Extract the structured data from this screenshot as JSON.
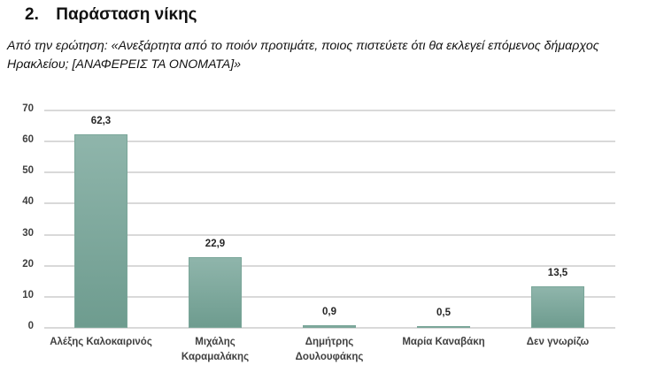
{
  "header": {
    "number": "2.",
    "title": "Παράσταση νίκης",
    "question_line1": "Από την ερώτηση: «Ανεξάρτητα από το ποιόν προτιμάτε, ποιος πιστεύετε ότι θα εκλεγεί επόμενος δήμαρχος",
    "question_line2": "Ηρακλείου; [ΑΝΑΦΕΡΕΙΣ ΤΑ ΟΝΟΜΑΤΑ]»"
  },
  "chart_data": {
    "type": "bar",
    "title": "Παράσταση νίκης",
    "subtitle": "Από την ερώτηση: «Ανεξάρτητα από το ποιόν προτιμάτε, ποιος πιστεύετε ότι θα εκλεγεί επόμενος δήμαρχος Ηρακλείου; [ΑΝΑΦΕΡΕΙΣ ΤΑ ΟΝΟΜΑΤΑ]»",
    "categories": [
      "Αλέξης Καλοκαιρινός",
      "Μιχάλης Καραμαλάκης",
      "Δημήτρης Δουλουφάκης",
      "Μαρία Καναβάκη",
      "Δεν γνωρίζω"
    ],
    "category_lines": [
      [
        "Αλέξης Καλοκαιρινός"
      ],
      [
        "Μιχάλης",
        "Καραμαλάκης"
      ],
      [
        "Δημήτρης",
        "Δουλουφάκης"
      ],
      [
        "Μαρία Καναβάκη"
      ],
      [
        "Δεν γνωρίζω"
      ]
    ],
    "values": [
      62.3,
      22.9,
      0.9,
      0.5,
      13.5
    ],
    "value_labels": [
      "62,3",
      "22,9",
      "0,9",
      "0,5",
      "13,5"
    ],
    "xlabel": "",
    "ylabel": "",
    "ylim": [
      0,
      70
    ],
    "yticks": [
      "0",
      "10",
      "20",
      "30",
      "40",
      "50",
      "60",
      "70"
    ],
    "grid": true,
    "legend": "none",
    "bar_color": "#7da89c"
  }
}
